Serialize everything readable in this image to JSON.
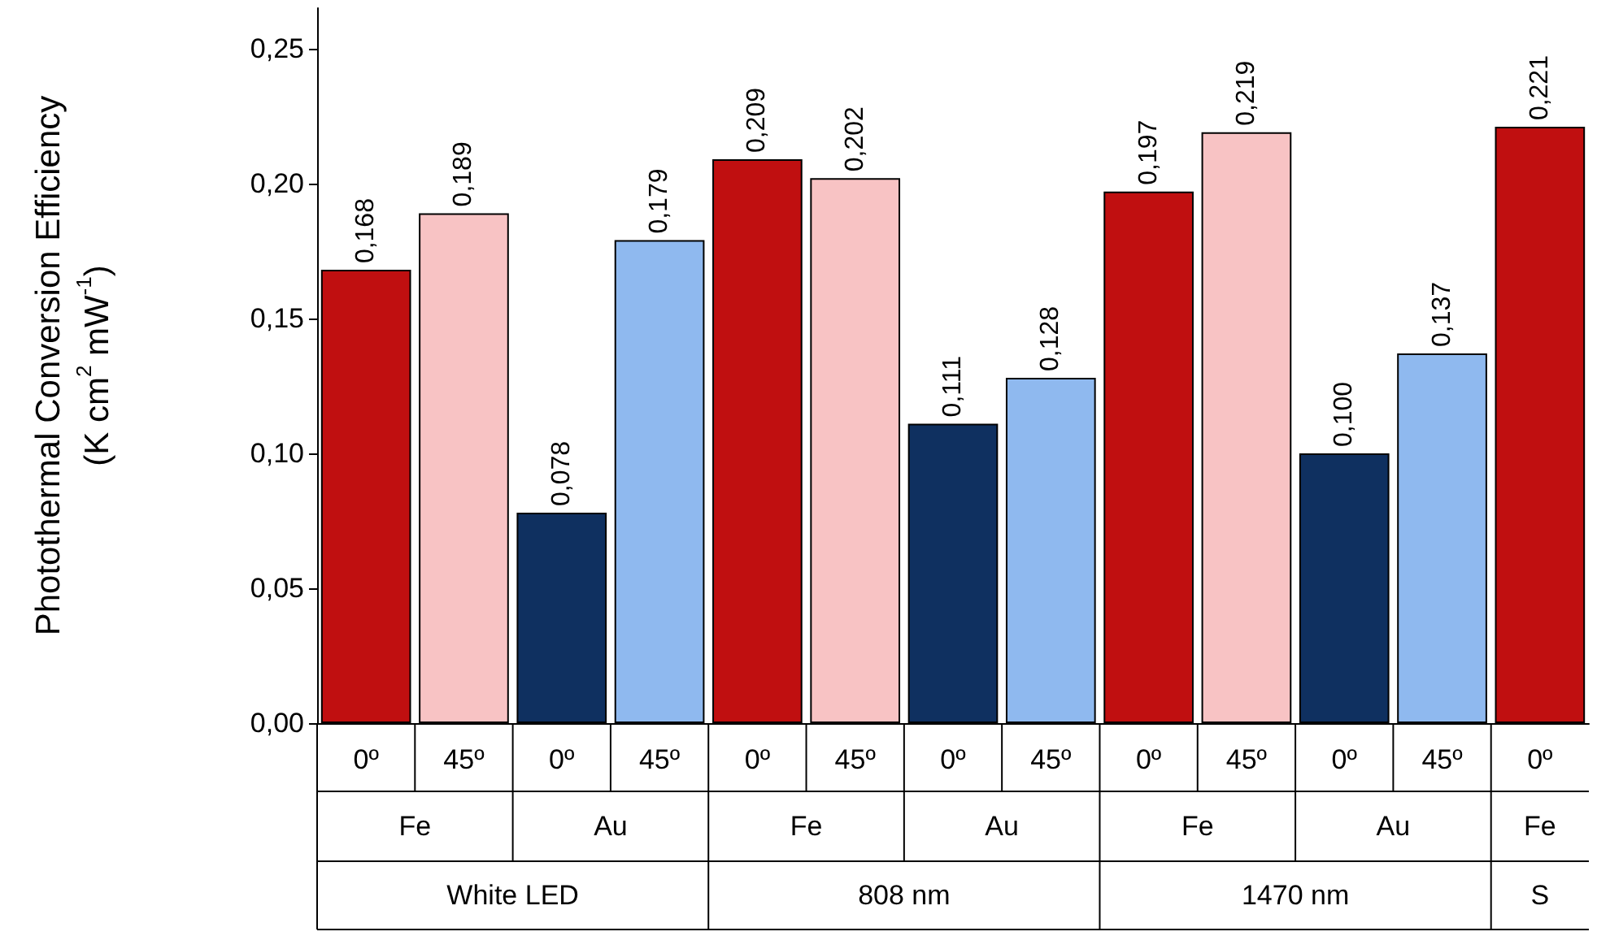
{
  "chart_data": {
    "type": "bar",
    "ylabel": "Photothermal Conversion Efficiency\n(K cm$^{2}$ mW$^{-1}$)",
    "categories": [
      "0º",
      "45º",
      "0º",
      "45º",
      "0º",
      "45º",
      "0º",
      "45º",
      "0º",
      "45º",
      "0º",
      "45º",
      "0º"
    ],
    "values": [
      0.168,
      0.189,
      0.078,
      0.179,
      0.209,
      0.202,
      0.111,
      0.128,
      0.197,
      0.219,
      0.1,
      0.137,
      0.221
    ],
    "value_labels": [
      "0,168",
      "0,189",
      "0,078",
      "0,179",
      "0,209",
      "0,202",
      "0,111",
      "0,128",
      "0,197",
      "0,219",
      "0,100",
      "0,137",
      "0,221"
    ],
    "colors": [
      "#c00f10",
      "#f8c3c4",
      "#0f3060",
      "#8fb9ef",
      "#c00f10",
      "#f8c3c4",
      "#0f3060",
      "#8fb9ef",
      "#c00f10",
      "#f8c3c4",
      "#0f3060",
      "#8fb9ef",
      "#c00f10"
    ],
    "annotations": [
      "Fe",
      "Au",
      "Fe",
      "Au",
      "Fe",
      "Au",
      "Fe",
      "White LED",
      "808 nm",
      "1470 nm",
      "S"
    ],
    "ylim": [
      0,
      0.265
    ],
    "yticks": [
      {
        "value": 0,
        "label": "0,00"
      },
      {
        "value": 0.05,
        "label": "0,05"
      },
      {
        "value": 0.1,
        "label": "0,10"
      },
      {
        "value": 0.15,
        "label": "0,15"
      },
      {
        "value": 0.2,
        "label": "0,20"
      },
      {
        "value": 0.25,
        "label": "0,25"
      }
    ],
    "grid": false
  }
}
